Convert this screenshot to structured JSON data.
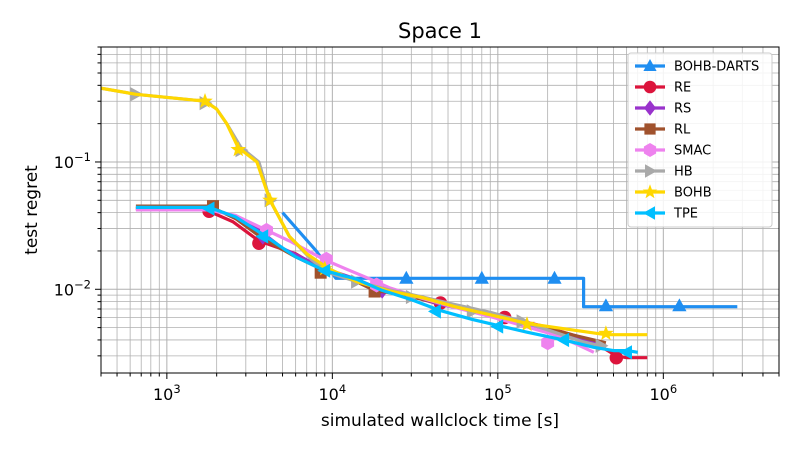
{
  "chart_data": {
    "type": "line",
    "title": "Space 1",
    "xlabel": "simulated wallclock time [s]",
    "ylabel": "test regret",
    "xscale": "log",
    "yscale": "log",
    "xlim": [
      400,
      5000000
    ],
    "ylim": [
      0.0022,
      0.8
    ],
    "grid": true,
    "legend_position": "top-right",
    "x_ticks": [
      {
        "value": 1000,
        "base": "10",
        "exp": "3"
      },
      {
        "value": 10000,
        "base": "10",
        "exp": "4"
      },
      {
        "value": 100000,
        "base": "10",
        "exp": "5"
      },
      {
        "value": 1000000,
        "base": "10",
        "exp": "6"
      }
    ],
    "y_ticks": [
      {
        "value": 0.01,
        "base": "10",
        "exp": "−2"
      },
      {
        "value": 0.1,
        "base": "10",
        "exp": "−1"
      }
    ],
    "series": [
      {
        "name": "BOHB-DARTS",
        "color": "#1f8ef1",
        "marker": "triangle-up",
        "points": [
          [
            5000,
            0.04
          ],
          [
            8000,
            0.02
          ],
          [
            10500,
            0.0122
          ],
          [
            28000,
            0.0122
          ],
          [
            80000,
            0.0122
          ],
          [
            220000,
            0.0122
          ],
          [
            330000,
            0.0122
          ],
          [
            330000,
            0.0073
          ],
          [
            450000,
            0.0073
          ],
          [
            1200000,
            0.0073
          ],
          [
            2800000,
            0.0073
          ]
        ],
        "markers": [
          [
            28000,
            0.0122
          ],
          [
            80000,
            0.0122
          ],
          [
            220000,
            0.0122
          ],
          [
            450000,
            0.0074
          ],
          [
            1250000,
            0.0074
          ]
        ]
      },
      {
        "name": "RE",
        "color": "#dc143c",
        "marker": "circle",
        "points": [
          [
            650,
            0.043
          ],
          [
            1700,
            0.043
          ],
          [
            1800,
            0.041
          ],
          [
            2500,
            0.034
          ],
          [
            3600,
            0.024
          ],
          [
            6000,
            0.019
          ],
          [
            9000,
            0.014
          ],
          [
            14000,
            0.012
          ],
          [
            20000,
            0.0098
          ],
          [
            30000,
            0.0088
          ],
          [
            45000,
            0.0078
          ],
          [
            70000,
            0.0068
          ],
          [
            110000,
            0.006
          ],
          [
            180000,
            0.0052
          ],
          [
            280000,
            0.0044
          ],
          [
            400000,
            0.0037
          ],
          [
            520000,
            0.003
          ],
          [
            600000,
            0.0029
          ],
          [
            800000,
            0.0029
          ]
        ],
        "markers": [
          [
            1800,
            0.041
          ],
          [
            3600,
            0.023
          ],
          [
            45000,
            0.0078
          ],
          [
            110000,
            0.006
          ],
          [
            520000,
            0.0029
          ]
        ]
      },
      {
        "name": "RS",
        "color": "#9932cc",
        "marker": "diamond",
        "points": [
          [
            650,
            0.043
          ],
          [
            1700,
            0.043
          ],
          [
            2200,
            0.04
          ],
          [
            3500,
            0.03
          ],
          [
            5000,
            0.021
          ],
          [
            7000,
            0.017
          ],
          [
            9000,
            0.0145
          ],
          [
            14000,
            0.012
          ],
          [
            20000,
            0.0098
          ],
          [
            30000,
            0.0088
          ],
          [
            45000,
            0.0076
          ],
          [
            70000,
            0.0068
          ],
          [
            110000,
            0.0058
          ],
          [
            180000,
            0.0048
          ],
          [
            300000,
            0.0041
          ],
          [
            450000,
            0.0036
          ]
        ],
        "markers": [
          [
            3800,
            0.026
          ],
          [
            20000,
            0.0098
          ]
        ]
      },
      {
        "name": "RL",
        "color": "#a0522d",
        "marker": "square",
        "points": [
          [
            650,
            0.045
          ],
          [
            1800,
            0.045
          ],
          [
            2600,
            0.036
          ],
          [
            3800,
            0.025
          ],
          [
            6000,
            0.018
          ],
          [
            9000,
            0.014
          ],
          [
            13000,
            0.012
          ],
          [
            18000,
            0.0098
          ],
          [
            27000,
            0.009
          ],
          [
            42000,
            0.0079
          ],
          [
            70000,
            0.007
          ],
          [
            110000,
            0.006
          ],
          [
            180000,
            0.0051
          ],
          [
            300000,
            0.0043
          ],
          [
            450000,
            0.0038
          ]
        ],
        "markers": [
          [
            1900,
            0.045
          ],
          [
            8500,
            0.0135
          ],
          [
            18000,
            0.0096
          ]
        ]
      },
      {
        "name": "SMAC",
        "color": "#ee82ee",
        "marker": "hexagon",
        "points": [
          [
            650,
            0.042
          ],
          [
            1800,
            0.042
          ],
          [
            2600,
            0.038
          ],
          [
            3800,
            0.03
          ],
          [
            5500,
            0.024
          ],
          [
            9000,
            0.017
          ],
          [
            12000,
            0.0145
          ],
          [
            17000,
            0.012
          ],
          [
            22000,
            0.0103
          ],
          [
            35000,
            0.0085
          ],
          [
            55000,
            0.0072
          ],
          [
            90000,
            0.0061
          ],
          [
            140000,
            0.0052
          ],
          [
            220000,
            0.0044
          ],
          [
            300000,
            0.0037
          ],
          [
            380000,
            0.0032
          ]
        ],
        "markers": [
          [
            4000,
            0.029
          ],
          [
            9200,
            0.0172
          ],
          [
            18500,
            0.0108
          ],
          [
            200000,
            0.0038
          ]
        ]
      },
      {
        "name": "HB",
        "color": "#a9a9a9",
        "marker": "triangle-right",
        "points": [
          [
            400,
            0.38
          ],
          [
            650,
            0.34
          ],
          [
            1700,
            0.3
          ],
          [
            2000,
            0.26
          ],
          [
            2300,
            0.2
          ],
          [
            2800,
            0.13
          ],
          [
            3600,
            0.1
          ],
          [
            4200,
            0.05
          ],
          [
            5500,
            0.026
          ],
          [
            7500,
            0.017
          ],
          [
            9500,
            0.0135
          ],
          [
            14000,
            0.0115
          ],
          [
            22000,
            0.0099
          ],
          [
            35000,
            0.0087
          ],
          [
            55000,
            0.0076
          ],
          [
            90000,
            0.0066
          ],
          [
            140000,
            0.0056
          ],
          [
            220000,
            0.0046
          ],
          [
            320000,
            0.0039
          ],
          [
            450000,
            0.0035
          ]
        ],
        "markers": [
          [
            650,
            0.34
          ],
          [
            1700,
            0.29
          ],
          [
            2800,
            0.124
          ],
          [
            4200,
            0.05
          ],
          [
            14000,
            0.0115
          ],
          [
            30000,
            0.0087
          ],
          [
            70000,
            0.0067
          ],
          [
            140000,
            0.0056
          ],
          [
            420000,
            0.0036
          ]
        ]
      },
      {
        "name": "BOHB",
        "color": "#ffd700",
        "marker": "star",
        "points": [
          [
            400,
            0.38
          ],
          [
            650,
            0.34
          ],
          [
            1700,
            0.3
          ],
          [
            2000,
            0.26
          ],
          [
            2300,
            0.2
          ],
          [
            2700,
            0.13
          ],
          [
            3500,
            0.1
          ],
          [
            4200,
            0.05
          ],
          [
            5500,
            0.026
          ],
          [
            7000,
            0.019
          ],
          [
            9500,
            0.0145
          ],
          [
            14000,
            0.0115
          ],
          [
            22000,
            0.0097
          ],
          [
            35000,
            0.0086
          ],
          [
            55000,
            0.0073
          ],
          [
            90000,
            0.0063
          ],
          [
            150000,
            0.0054
          ],
          [
            250000,
            0.0049
          ],
          [
            450000,
            0.0044
          ],
          [
            800000,
            0.0044
          ]
        ],
        "markers": [
          [
            1700,
            0.3
          ],
          [
            2700,
            0.125
          ],
          [
            4200,
            0.05
          ],
          [
            9000,
            0.0145
          ],
          [
            150000,
            0.0053
          ],
          [
            450000,
            0.0045
          ]
        ]
      },
      {
        "name": "TPE",
        "color": "#00bfff",
        "marker": "triangle-left",
        "points": [
          [
            650,
            0.044
          ],
          [
            1800,
            0.044
          ],
          [
            2600,
            0.037
          ],
          [
            3800,
            0.027
          ],
          [
            6000,
            0.018
          ],
          [
            9000,
            0.014
          ],
          [
            14000,
            0.012
          ],
          [
            20000,
            0.0098
          ],
          [
            30000,
            0.0083
          ],
          [
            45000,
            0.0068
          ],
          [
            70000,
            0.0058
          ],
          [
            100000,
            0.0052
          ],
          [
            150000,
            0.0046
          ],
          [
            250000,
            0.004
          ],
          [
            380000,
            0.0035
          ],
          [
            500000,
            0.0033
          ],
          [
            600000,
            0.0033
          ],
          [
            700000,
            0.0032
          ]
        ],
        "markers": [
          [
            1800,
            0.043
          ],
          [
            3800,
            0.026
          ],
          [
            9000,
            0.014
          ],
          [
            42000,
            0.0067
          ],
          [
            100000,
            0.0051
          ],
          [
            250000,
            0.004
          ],
          [
            600000,
            0.0032
          ]
        ]
      }
    ]
  }
}
